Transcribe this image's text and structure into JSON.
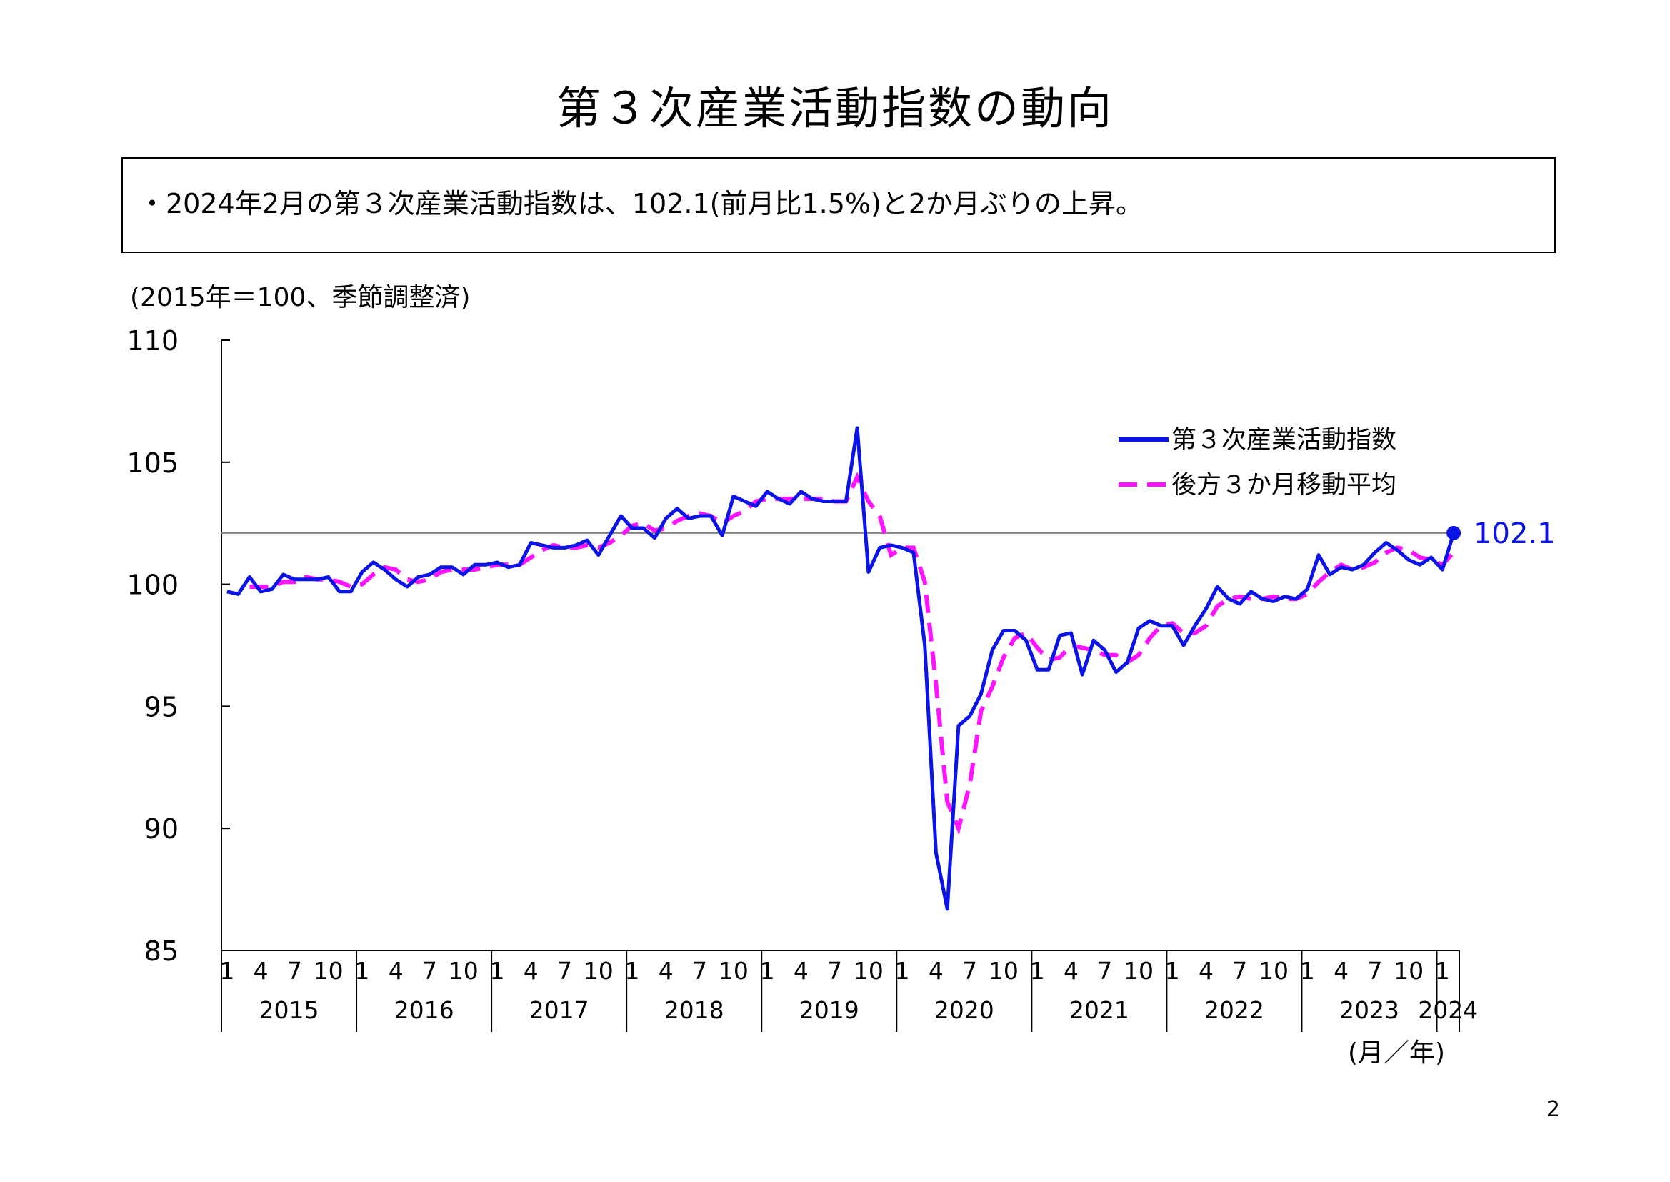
{
  "title": "第３次産業活動指数の動向",
  "summary": "・2024年2月の第３次産業活動指数は、102.1(前月比1.5%)と2か月ぶりの上昇。",
  "page_number": "2",
  "colors": {
    "index": "#0a14e6",
    "moving_average": "#ff14ff",
    "reference_line": "#808080",
    "axis": "#000000"
  },
  "chart_data": {
    "type": "line",
    "unit_label": "(2015年＝100、季節調整済)",
    "xlabel": "(月／年)",
    "ylim": [
      85,
      110
    ],
    "yticks": [
      85,
      90,
      95,
      100,
      105,
      110
    ],
    "month_tick_labels": [
      "1",
      "4",
      "7",
      "10"
    ],
    "years": [
      "2015",
      "2016",
      "2017",
      "2018",
      "2019",
      "2020",
      "2021",
      "2022",
      "2023"
    ],
    "last_year_label": "2024",
    "last_year_month_label": "1",
    "start": "2015-01",
    "end": "2024-02",
    "reference_value": 102.1,
    "latest_label": "102.1",
    "legend": {
      "position": "top-right",
      "entries": [
        "第３次産業活動指数",
        "後方３か月移動平均"
      ]
    },
    "series": [
      {
        "name": "第３次産業活動指数",
        "values": [
          99.7,
          99.6,
          100.3,
          99.7,
          99.8,
          100.4,
          100.2,
          100.2,
          100.2,
          100.3,
          99.7,
          99.7,
          100.5,
          100.9,
          100.6,
          100.2,
          99.9,
          100.3,
          100.4,
          100.7,
          100.7,
          100.4,
          100.8,
          100.8,
          100.9,
          100.7,
          100.8,
          101.7,
          101.6,
          101.5,
          101.5,
          101.6,
          101.8,
          101.2,
          102.0,
          102.8,
          102.3,
          102.3,
          101.9,
          102.7,
          103.1,
          102.7,
          102.8,
          102.8,
          102.0,
          103.6,
          103.4,
          103.2,
          103.8,
          103.5,
          103.3,
          103.8,
          103.5,
          103.4,
          103.4,
          103.4,
          106.4,
          100.5,
          101.5,
          101.6,
          101.5,
          101.3,
          97.5,
          89.0,
          86.7,
          94.2,
          94.6,
          95.5,
          97.3,
          98.1,
          98.1,
          97.7,
          96.5,
          96.5,
          97.9,
          98.0,
          96.3,
          97.7,
          97.3,
          96.4,
          96.8,
          98.2,
          98.5,
          98.3,
          98.3,
          97.5,
          98.3,
          99.0,
          99.9,
          99.4,
          99.2,
          99.7,
          99.4,
          99.3,
          99.5,
          99.4,
          99.8,
          101.2,
          100.4,
          100.7,
          100.6,
          100.8,
          101.3,
          101.7,
          101.4,
          101.0,
          100.8,
          101.1,
          100.6,
          102.1
        ]
      },
      {
        "name": "後方３か月移動平均",
        "values": [
          null,
          null,
          99.9,
          99.9,
          99.9,
          100.1,
          100.1,
          100.3,
          100.2,
          100.2,
          100.1,
          99.9,
          100.0,
          100.4,
          100.7,
          100.6,
          100.2,
          100.1,
          100.2,
          100.5,
          100.6,
          100.6,
          100.6,
          100.7,
          100.8,
          100.8,
          100.8,
          101.1,
          101.4,
          101.6,
          101.5,
          101.5,
          101.6,
          101.5,
          101.7,
          102.0,
          102.4,
          102.5,
          102.2,
          102.3,
          102.6,
          102.8,
          102.9,
          102.8,
          102.5,
          102.8,
          103.0,
          103.4,
          103.5,
          103.5,
          103.5,
          103.5,
          103.5,
          103.5,
          103.4,
          103.4,
          104.4,
          103.4,
          102.8,
          101.2,
          101.5,
          101.5,
          100.1,
          95.9,
          91.1,
          90.0,
          91.8,
          94.8,
          95.8,
          97.0,
          97.8,
          98.0,
          97.4,
          96.9,
          97.0,
          97.5,
          97.4,
          97.3,
          97.1,
          97.1,
          96.8,
          97.1,
          97.8,
          98.3,
          98.4,
          98.0,
          98.0,
          98.3,
          99.1,
          99.4,
          99.5,
          99.4,
          99.4,
          99.5,
          99.4,
          99.4,
          99.6,
          100.1,
          100.5,
          100.8,
          100.6,
          100.7,
          100.9,
          101.3,
          101.5,
          101.4,
          101.1,
          101.0,
          100.8,
          101.3
        ]
      }
    ]
  }
}
